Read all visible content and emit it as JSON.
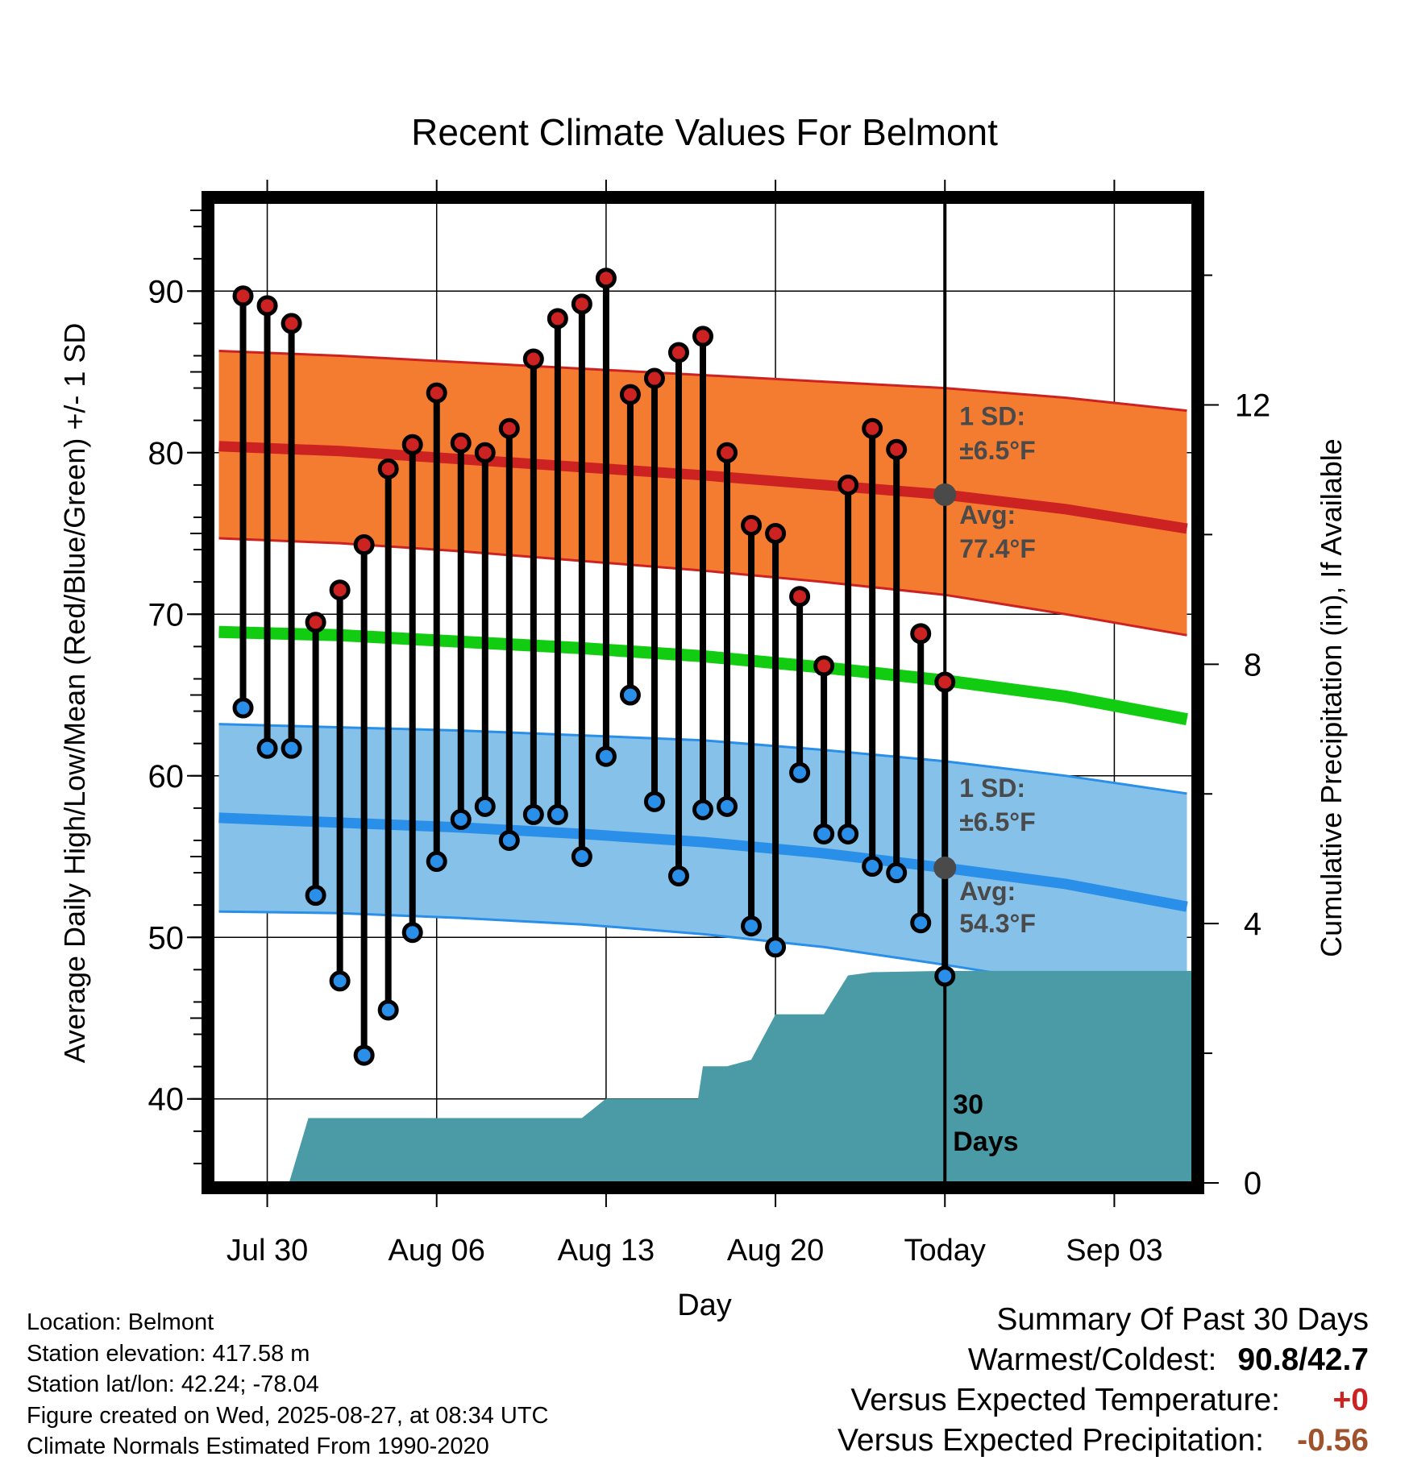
{
  "chart_data": {
    "type": "line",
    "title": "Recent Climate Values For Belmont",
    "xlabel": "Day",
    "ylabel": "Average Daily High/Low/Mean (Red/Blue/Green) +/- 1 SD",
    "y2label": "Cumulative Precipitation (in), If Available",
    "x_ticks": [
      {
        "label": "Jul 30",
        "day": 2
      },
      {
        "label": "Aug 06",
        "day": 9
      },
      {
        "label": "Aug 13",
        "day": 16
      },
      {
        "label": "Aug 20",
        "day": 23
      },
      {
        "label": "Today",
        "day": 30
      },
      {
        "label": "Sep 03",
        "day": 37
      }
    ],
    "xlim": [
      -0.25,
      40.25
    ],
    "ylim": [
      34.8,
      95.8
    ],
    "y_ticks": [
      40,
      50,
      60,
      70,
      80,
      90
    ],
    "y2lim": [
      0,
      15.2
    ],
    "y2_ticks": [
      0,
      4,
      8,
      12
    ],
    "grid": true,
    "today_day": 30,
    "series": [
      {
        "name": "High",
        "color": "#cc2222",
        "values": [
          89.7,
          89.1,
          88.0,
          69.5,
          71.5,
          74.3,
          79.0,
          80.5,
          83.7,
          80.6,
          80.0,
          81.5,
          85.8,
          88.3,
          89.2,
          90.8,
          83.6,
          84.6,
          86.2,
          87.2,
          80.0,
          75.5,
          75.0,
          71.1,
          66.8,
          78.0,
          81.5,
          80.2,
          68.8,
          65.8
        ]
      },
      {
        "name": "Low",
        "color": "#2a8fe8",
        "values": [
          64.2,
          61.7,
          61.7,
          52.6,
          47.3,
          42.7,
          45.5,
          50.3,
          54.7,
          57.3,
          58.1,
          56.0,
          57.6,
          57.6,
          55.0,
          61.2,
          65.0,
          58.4,
          53.8,
          57.9,
          58.1,
          50.7,
          49.4,
          60.2,
          56.4,
          56.4,
          54.4,
          54.0,
          50.9,
          47.6
        ]
      }
    ],
    "normals": {
      "days": [
        0,
        5,
        10,
        15,
        20,
        25,
        30,
        35,
        40
      ],
      "high_avg": [
        80.4,
        80.1,
        79.6,
        79.1,
        78.6,
        78.0,
        77.4,
        76.5,
        75.3
      ],
      "high_upper": [
        86.3,
        86.0,
        85.6,
        85.2,
        84.8,
        84.4,
        84.0,
        83.4,
        82.6
      ],
      "high_lower": [
        74.7,
        74.4,
        73.9,
        73.3,
        72.7,
        72.0,
        71.2,
        70.0,
        68.7
      ],
      "low_avg": [
        57.4,
        57.1,
        56.8,
        56.4,
        55.9,
        55.2,
        54.3,
        53.3,
        51.9
      ],
      "low_upper": [
        63.2,
        63.0,
        62.8,
        62.5,
        62.2,
        61.6,
        60.9,
        60.0,
        58.9
      ],
      "low_lower": [
        51.6,
        51.5,
        51.2,
        50.8,
        50.2,
        49.4,
        48.3,
        47.1,
        45.5
      ],
      "mean_avg": [
        68.9,
        68.7,
        68.3,
        67.9,
        67.4,
        66.7,
        65.9,
        64.9,
        63.5
      ]
    },
    "annotations": {
      "high_sd": "1 SD:",
      "high_sd_val": "±6.5°F",
      "high_avg_label": "Avg:",
      "high_avg_val": "77.4°F",
      "low_sd": "1 SD:",
      "low_sd_val": "±6.5°F",
      "low_avg_label": "Avg:",
      "low_avg_val": "54.3°F",
      "days_count": "30",
      "days_label": "Days"
    },
    "precipitation": {
      "days": [
        -1,
        2.9,
        3.7,
        15.0,
        16.0,
        19.8,
        20.0,
        21.0,
        22.0,
        23.0,
        24.0,
        25.0,
        26.0,
        27.0,
        30.0,
        40.25
      ],
      "values": [
        0,
        0,
        1.0,
        1.0,
        1.3,
        1.3,
        1.8,
        1.8,
        1.9,
        2.6,
        2.6,
        2.6,
        3.2,
        3.25,
        3.27,
        3.27
      ]
    },
    "colors": {
      "high_band": "#f47c30",
      "high_line": "#cc2222",
      "low_band": "#85c1e8",
      "low_line": "#2a8fe8",
      "mean_line": "#11cc11",
      "precip": "#4a9ba6",
      "annotation": "#4a4a4a"
    }
  },
  "info": {
    "location": "Location: Belmont",
    "elevation": "Station elevation: 417.58 m",
    "latlon": "Station lat/lon: 42.24; -78.04",
    "created": "Figure created on Wed, 2025-08-27, at 08:34 UTC",
    "normals": "Climate Normals Estimated From 1990-2020"
  },
  "summary": {
    "title": "Summary Of Past 30 Days",
    "warm_label": "Warmest/Coldest:",
    "warm_value": "90.8/42.7",
    "temp_label": "Versus Expected Temperature:",
    "temp_value": "+0",
    "temp_color": "#cc2222",
    "precip_label": "Versus Expected Precipitation:",
    "precip_value": "-0.56",
    "precip_color": "#a0522d"
  }
}
